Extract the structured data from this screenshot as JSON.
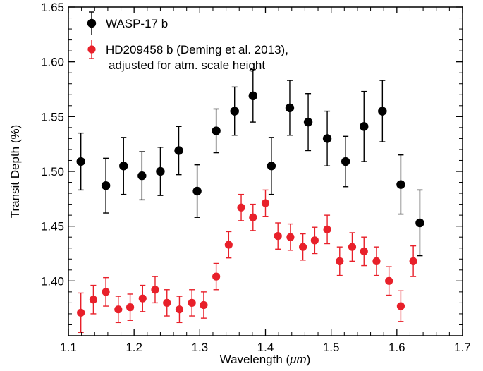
{
  "chart_data": {
    "type": "scatter",
    "xlabel_prefix": "Wavelength (",
    "xlabel_unit": "μm",
    "xlabel_suffix": ")",
    "ylabel": "Transit Depth (%)",
    "xlim": [
      1.1,
      1.7
    ],
    "ylim": [
      1.35,
      1.65
    ],
    "xticks": [
      1.1,
      1.2,
      1.3,
      1.4,
      1.5,
      1.6,
      1.7
    ],
    "xtick_labels": [
      "1.1",
      "1.2",
      "1.3",
      "1.4",
      "1.5",
      "1.6",
      "1.7"
    ],
    "yticks": [
      1.4,
      1.45,
      1.5,
      1.55,
      1.6,
      1.65
    ],
    "ytick_labels": [
      "1.40",
      "1.45",
      "1.50",
      "1.55",
      "1.60",
      "1.65"
    ],
    "legend": [
      {
        "lines": [
          "WASP-17 b"
        ],
        "color": "#000000"
      },
      {
        "lines": [
          "HD209458 b (Deming et al. 2013),",
          "adjusted for atm. scale height"
        ],
        "color": "#e8202a"
      }
    ],
    "series": [
      {
        "color": "#000000",
        "error_color": "#000000",
        "points": [
          {
            "x": 1.119,
            "y": 1.509,
            "err": 0.026
          },
          {
            "x": 1.157,
            "y": 1.487,
            "err": 0.025
          },
          {
            "x": 1.184,
            "y": 1.505,
            "err": 0.026
          },
          {
            "x": 1.212,
            "y": 1.496,
            "err": 0.022
          },
          {
            "x": 1.24,
            "y": 1.5,
            "err": 0.022
          },
          {
            "x": 1.268,
            "y": 1.519,
            "err": 0.022
          },
          {
            "x": 1.296,
            "y": 1.482,
            "err": 0.024
          },
          {
            "x": 1.325,
            "y": 1.537,
            "err": 0.02
          },
          {
            "x": 1.353,
            "y": 1.555,
            "err": 0.022
          },
          {
            "x": 1.381,
            "y": 1.569,
            "err": 0.024
          },
          {
            "x": 1.409,
            "y": 1.505,
            "err": 0.026
          },
          {
            "x": 1.437,
            "y": 1.558,
            "err": 0.025
          },
          {
            "x": 1.465,
            "y": 1.545,
            "err": 0.026
          },
          {
            "x": 1.494,
            "y": 1.53,
            "err": 0.025
          },
          {
            "x": 1.522,
            "y": 1.509,
            "err": 0.023
          },
          {
            "x": 1.55,
            "y": 1.541,
            "err": 0.032
          },
          {
            "x": 1.578,
            "y": 1.555,
            "err": 0.028
          },
          {
            "x": 1.606,
            "y": 1.488,
            "err": 0.027
          },
          {
            "x": 1.635,
            "y": 1.453,
            "err": 0.03
          }
        ]
      },
      {
        "color": "#e8202a",
        "error_color": "#e8202a",
        "points": [
          {
            "x": 1.119,
            "y": 1.371,
            "err": 0.018
          },
          {
            "x": 1.138,
            "y": 1.383,
            "err": 0.013
          },
          {
            "x": 1.157,
            "y": 1.39,
            "err": 0.013
          },
          {
            "x": 1.176,
            "y": 1.374,
            "err": 0.012
          },
          {
            "x": 1.194,
            "y": 1.376,
            "err": 0.012
          },
          {
            "x": 1.213,
            "y": 1.384,
            "err": 0.012
          },
          {
            "x": 1.232,
            "y": 1.392,
            "err": 0.012
          },
          {
            "x": 1.25,
            "y": 1.38,
            "err": 0.012
          },
          {
            "x": 1.269,
            "y": 1.374,
            "err": 0.012
          },
          {
            "x": 1.288,
            "y": 1.38,
            "err": 0.012
          },
          {
            "x": 1.306,
            "y": 1.378,
            "err": 0.012
          },
          {
            "x": 1.325,
            "y": 1.404,
            "err": 0.012
          },
          {
            "x": 1.344,
            "y": 1.433,
            "err": 0.012
          },
          {
            "x": 1.363,
            "y": 1.467,
            "err": 0.012
          },
          {
            "x": 1.381,
            "y": 1.458,
            "err": 0.012
          },
          {
            "x": 1.4,
            "y": 1.471,
            "err": 0.012
          },
          {
            "x": 1.419,
            "y": 1.441,
            "err": 0.012
          },
          {
            "x": 1.438,
            "y": 1.44,
            "err": 0.012
          },
          {
            "x": 1.457,
            "y": 1.431,
            "err": 0.012
          },
          {
            "x": 1.475,
            "y": 1.437,
            "err": 0.012
          },
          {
            "x": 1.494,
            "y": 1.447,
            "err": 0.013
          },
          {
            "x": 1.513,
            "y": 1.418,
            "err": 0.013
          },
          {
            "x": 1.532,
            "y": 1.431,
            "err": 0.013
          },
          {
            "x": 1.55,
            "y": 1.427,
            "err": 0.013
          },
          {
            "x": 1.569,
            "y": 1.418,
            "err": 0.013
          },
          {
            "x": 1.588,
            "y": 1.4,
            "err": 0.013
          },
          {
            "x": 1.606,
            "y": 1.377,
            "err": 0.014
          },
          {
            "x": 1.625,
            "y": 1.418,
            "err": 0.014
          }
        ]
      }
    ]
  }
}
